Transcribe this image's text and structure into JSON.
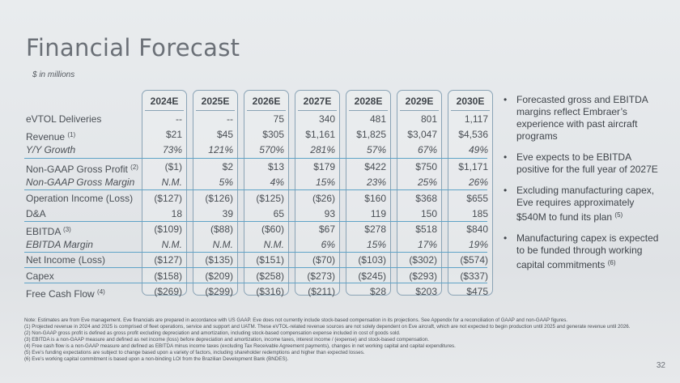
{
  "title": "Financial Forecast",
  "subtitle": "$ in millions",
  "years": [
    "2024E",
    "2025E",
    "2026E",
    "2027E",
    "2028E",
    "2029E",
    "2030E"
  ],
  "rows": [
    {
      "label": "eVTOL Deliveries",
      "note": "",
      "italic": false,
      "values": [
        "--",
        "--",
        "75",
        "340",
        "481",
        "801",
        "1,117"
      ]
    },
    {
      "label": "Revenue",
      "note": "(1)",
      "italic": false,
      "values": [
        "$21",
        "$45",
        "$305",
        "$1,161",
        "$1,825",
        "$3,047",
        "$4,536"
      ]
    },
    {
      "label": "Y/Y Growth",
      "note": "",
      "italic": true,
      "values": [
        "73%",
        "121%",
        "570%",
        "281%",
        "57%",
        "67%",
        "49%"
      ]
    },
    {
      "label": "Non-GAAP Gross Profit",
      "note": "(2)",
      "italic": false,
      "values": [
        "($1)",
        "$2",
        "$13",
        "$179",
        "$422",
        "$750",
        "$1,171"
      ]
    },
    {
      "label": "Non-GAAP Gross Margin",
      "note": "",
      "italic": true,
      "values": [
        "N.M.",
        "5%",
        "4%",
        "15%",
        "23%",
        "25%",
        "26%"
      ]
    },
    {
      "label": "Operation Income (Loss)",
      "note": "",
      "italic": false,
      "values": [
        "($127)",
        "($126)",
        "($125)",
        "($26)",
        "$160",
        "$368",
        "$655"
      ]
    },
    {
      "label": "D&A",
      "note": "",
      "italic": false,
      "values": [
        "18",
        "39",
        "65",
        "93",
        "119",
        "150",
        "185"
      ]
    },
    {
      "label": "EBITDA",
      "note": "(3)",
      "italic": false,
      "values": [
        "($109)",
        "($88)",
        "($60)",
        "$67",
        "$278",
        "$518",
        "$840"
      ]
    },
    {
      "label": "EBITDA Margin",
      "note": "",
      "italic": true,
      "values": [
        "N.M.",
        "N.M.",
        "N.M.",
        "6%",
        "15%",
        "17%",
        "19%"
      ]
    },
    {
      "label": "Net Income (Loss)",
      "note": "",
      "italic": false,
      "values": [
        "($127)",
        "($135)",
        "($151)",
        "($70)",
        "($103)",
        "($302)",
        "($574)"
      ]
    },
    {
      "label": "Capex",
      "note": "",
      "italic": false,
      "values": [
        "($158)",
        "($209)",
        "($258)",
        "($273)",
        "($245)",
        "($293)",
        "($337)"
      ]
    },
    {
      "label": "Free Cash Flow",
      "note": "(4)",
      "italic": false,
      "values": [
        "($269)",
        "($299)",
        "($316)",
        "($211)",
        "$28",
        "$203",
        "$475"
      ]
    }
  ],
  "bullets": [
    {
      "text": "Forecasted gross and EBITDA margins reflect Embraer’s experience with past aircraft programs",
      "note": ""
    },
    {
      "text": "Eve expects to be EBITDA positive for the full year of 2027E",
      "note": ""
    },
    {
      "text": "Excluding manufacturing capex, Eve requires approximately $540M to fund its plan",
      "note": "(5)"
    },
    {
      "text": "Manufacturing capex is expected to be funded through working capital commitments",
      "note": "(6)"
    }
  ],
  "notes": [
    "Note: Estimates are from Eve management. Eve financials are prepared in accordance with US GAAP. Eve does not currently include stock-based compensation in its projections. See Appendix for a reconciliation of GAAP and non-GAAP figures.",
    "(1) Projected revenue in 2024 and 2025 is comprised of fleet operations, service and support and UATM. These eVTOL-related revenue sources are not solely dependent on Eve aircraft, which are not expected to begin production until 2025 and generate revenue until 2026.",
    "(2) Non-GAAP gross profit is defined as gross profit excluding depreciation and amortization, including stock-based compensation expense included in cost of goods sold.",
    "(3) EBITDA is a non-GAAP measure and defined as net income (loss) before depreciation and amortization, income taxes, interest income / (expense) and stock-based compensation.",
    "(4) Free cash flow is a non-GAAP measure and defined as EBITDA minus income taxes (excluding Tax Receivable Agreement payments), changes in net working capital and capital expenditures.",
    "(5) Eve’s funding expectations are subject to change based upon a variety of factors, including shareholder redemptions and higher than expected losses.",
    "(6) Eve’s working capital commitment is based upon a non-binding LOI from the Brazilian Development Bank (BNDES)."
  ],
  "page_number": "32",
  "colors": {
    "accent_line": "#5fa3c7",
    "box_border": "#8aa3b5",
    "title": "#6b7077"
  }
}
